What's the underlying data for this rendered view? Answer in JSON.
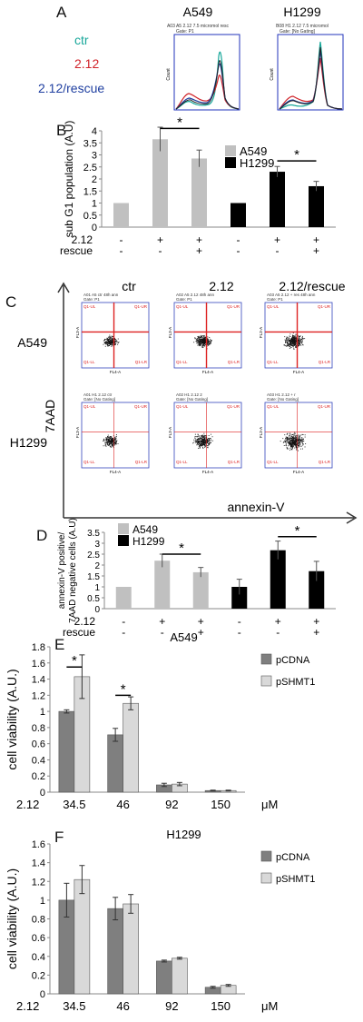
{
  "panels": {
    "A": {
      "letter": "A",
      "legend": [
        {
          "label": "ctr",
          "color": "#18a79a"
        },
        {
          "label": "2.12",
          "color": "#d1242a"
        },
        {
          "label": "2.12/rescue",
          "color": "#1f3fa0"
        }
      ],
      "hist": [
        {
          "title": "A549",
          "header": "A03 A5 2.12 7.5 micromol resc",
          "gate": "Gate: P1",
          "ylab": "Count"
        },
        {
          "title": "H1299",
          "header": "B08 H1 2.12 7.5 micromol",
          "gate": "Gate: [No Gating]",
          "ylab": "Count"
        }
      ]
    },
    "B": {
      "letter": "B"
    },
    "C": {
      "letter": "C",
      "cols": [
        "ctr",
        "2.12",
        "2.12/rescue"
      ],
      "rows": [
        "A549",
        "H1299"
      ],
      "yaxis": "7AAD",
      "xaxis": "annexin-V",
      "plot_headers": [
        [
          "A01 A5 ctr 48h ann",
          "A02 A5 2.12 48h ann",
          "A03 A5 2.12 + res 48h ann"
        ],
        [
          "A01 H1 2.12 ctr",
          "A02 H1 2.12 2",
          "A03 H1 2.12 + r"
        ]
      ],
      "gates": [
        [
          "Gate: P1",
          "Gate: P1",
          "Gate: P1"
        ],
        [
          "Gate: [No Gating]",
          "Gate: [No Gating]",
          "Gate: [No Gating]"
        ]
      ],
      "quadrants": {
        "ul": "Q1-UL",
        "ur": "Q1-UR",
        "ll": "Q1-LL",
        "lr": "Q1-LR"
      },
      "axis_small": {
        "x": "FL4-A",
        "y": "FL3-A"
      }
    },
    "D": {
      "letter": "D"
    },
    "E": {
      "letter": "E"
    },
    "F": {
      "letter": "F"
    }
  },
  "chart_data": [
    {
      "id": "B",
      "type": "bar",
      "title": "",
      "ylabel": "sub G1 population (A.U)",
      "ylim": [
        0,
        4
      ],
      "yticks": [
        "0",
        "0.5",
        "1",
        "1.5",
        "2",
        "2.5",
        "3",
        "3.5",
        "4"
      ],
      "legend": [
        {
          "name": "A549",
          "color": "#c0c0c0"
        },
        {
          "name": "H1299",
          "color": "#000000"
        }
      ],
      "legend_position": "top-right",
      "values": [
        1,
        3.65,
        2.85,
        1,
        2.3,
        1.7
      ],
      "errors": [
        0,
        0.5,
        0.35,
        0,
        0.22,
        0.2
      ],
      "colors": [
        "#c0c0c0",
        "#c0c0c0",
        "#c0c0c0",
        "#000000",
        "#000000",
        "#000000"
      ],
      "treatment_rows": [
        {
          "label": "2.12",
          "signs": [
            "-",
            "+",
            "+",
            "-",
            "+",
            "+"
          ]
        },
        {
          "label": "rescue",
          "signs": [
            "-",
            "-",
            "+",
            "-",
            "-",
            "+"
          ]
        }
      ],
      "significance": [
        {
          "from": 1,
          "to": 2,
          "level": 4.1,
          "label": "*"
        },
        {
          "from": 4,
          "to": 5,
          "level": 2.75,
          "label": "*"
        }
      ]
    },
    {
      "id": "D",
      "type": "bar",
      "title": "",
      "ylabel": "annexin-V positive/ 7AAD negative cells (A.U)",
      "ylim": [
        0,
        3.5
      ],
      "yticks": [
        "0",
        "0.5",
        "1",
        "1.5",
        "2",
        "2.5",
        "3",
        "3.5"
      ],
      "legend": [
        {
          "name": "A549",
          "color": "#c0c0c0"
        },
        {
          "name": "H1299",
          "color": "#000000"
        }
      ],
      "legend_position": "top-left",
      "values": [
        1,
        2.2,
        1.67,
        1,
        2.68,
        1.72
      ],
      "errors": [
        0,
        0.3,
        0.22,
        0.35,
        0.42,
        0.45
      ],
      "colors": [
        "#c0c0c0",
        "#c0c0c0",
        "#c0c0c0",
        "#000000",
        "#000000",
        "#000000"
      ],
      "treatment_rows": [
        {
          "label": "2.12",
          "signs": [
            "-",
            "+",
            "+",
            "-",
            "+",
            "+"
          ]
        },
        {
          "label": "rescue",
          "signs": [
            "-",
            "-",
            "+",
            "-",
            "-",
            "+"
          ]
        }
      ],
      "significance": [
        {
          "from": 1,
          "to": 2,
          "level": 2.5,
          "label": "*"
        },
        {
          "from": 4,
          "to": 5,
          "level": 3.3,
          "label": "*"
        }
      ]
    },
    {
      "id": "E",
      "type": "bar",
      "title": "A549",
      "ylabel": "cell viability (A.U.)",
      "xlabel_left": "2.12",
      "xunit": "μM",
      "categories": [
        "34.5",
        "46",
        "92",
        "150"
      ],
      "ylim": [
        0,
        1.8
      ],
      "yticks": [
        "0",
        "0.2",
        "0.4",
        "0.6",
        "0.8",
        "1",
        "1.2",
        "1.4",
        "1.6",
        "1.8"
      ],
      "legend_position": "right",
      "series": [
        {
          "name": "pCDNA",
          "color": "#7f7f7f",
          "values": [
            1.0,
            0.71,
            0.09,
            0.02
          ],
          "errors": [
            0.02,
            0.08,
            0.02,
            0.005
          ]
        },
        {
          "name": "pSHMT1",
          "color": "#d9d9d9",
          "values": [
            1.43,
            1.1,
            0.1,
            0.02
          ],
          "errors": [
            0.27,
            0.08,
            0.02,
            0.005
          ]
        }
      ],
      "significance": [
        {
          "category": 0,
          "level": 1.55,
          "label": "*"
        },
        {
          "category": 1,
          "level": 1.2,
          "label": "*"
        }
      ]
    },
    {
      "id": "F",
      "type": "bar",
      "title": "H1299",
      "ylabel": "cell viability (A.U.)",
      "xlabel_left": "2.12",
      "xunit": "μM",
      "categories": [
        "34.5",
        "46",
        "92",
        "150"
      ],
      "ylim": [
        0,
        1.6
      ],
      "yticks": [
        "0",
        "0.2",
        "0.4",
        "0.6",
        "0.8",
        "1",
        "1.2",
        "1.4",
        "1.6"
      ],
      "legend_position": "right",
      "series": [
        {
          "name": "pCDNA",
          "color": "#7f7f7f",
          "values": [
            1.0,
            0.91,
            0.35,
            0.07
          ],
          "errors": [
            0.18,
            0.12,
            0.01,
            0.01
          ]
        },
        {
          "name": "pSHMT1",
          "color": "#d9d9d9",
          "values": [
            1.22,
            0.96,
            0.38,
            0.09
          ],
          "errors": [
            0.15,
            0.1,
            0.01,
            0.01
          ]
        }
      ],
      "significance": []
    }
  ]
}
